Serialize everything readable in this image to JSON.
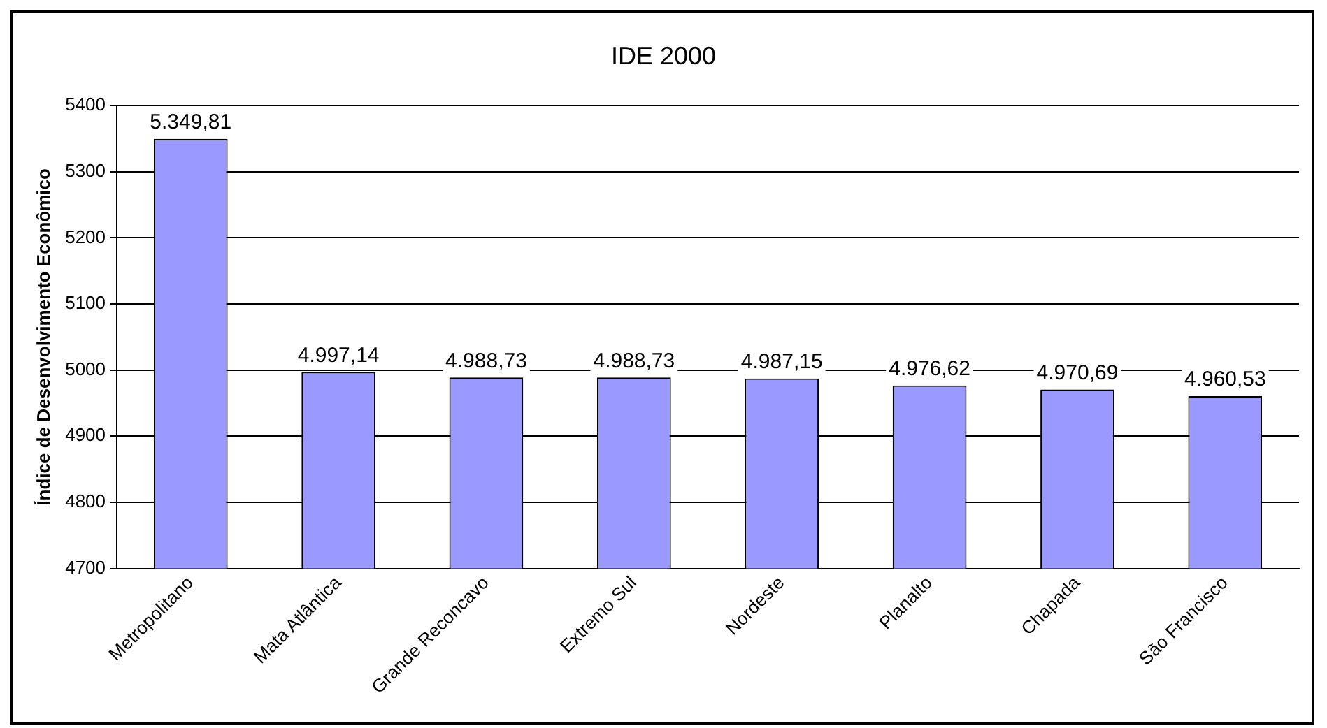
{
  "chart_data": {
    "type": "bar",
    "title": "IDE 2000",
    "ylabel": "Índice de Desenvolvimento Econômico",
    "categories": [
      "Metropolitano",
      "Mata Atlântica",
      "Grande Reconcavo",
      "Extremo Sul",
      "Nordeste",
      "Planalto",
      "Chapada",
      "São Francisco"
    ],
    "values": [
      5349.81,
      4997.14,
      4988.73,
      4988.73,
      4987.15,
      4976.62,
      4970.69,
      4960.53
    ],
    "value_labels": [
      "5.349,81",
      "4.997,14",
      "4.988,73",
      "4.988,73",
      "4.987,15",
      "4.976,62",
      "4.970,69",
      "4.960,53"
    ],
    "color": "#9999ff",
    "ylim": [
      4700,
      5400
    ],
    "yticks": [
      4700,
      4800,
      4900,
      5000,
      5100,
      5200,
      5300,
      5400
    ],
    "grid": "y",
    "legend": false
  }
}
